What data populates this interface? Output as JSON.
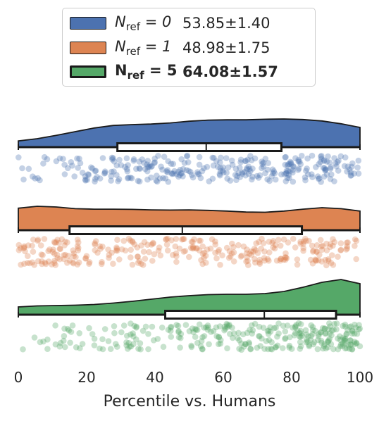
{
  "chart_data": {
    "type": "raincloud",
    "xlabel": "Percentile vs. Humans",
    "xlim": [
      0,
      100
    ],
    "xticks": [
      0,
      20,
      40,
      60,
      80,
      100
    ],
    "legend_position": "top-center",
    "grid": false,
    "series": [
      {
        "name_main": "N",
        "name_sub": "ref",
        "name_eq": " = 0",
        "stat": "53.85±1.40",
        "bold": false,
        "color": "#4c72b0",
        "box": {
          "min": 0,
          "q1": 29,
          "median": 55,
          "q3": 77,
          "max": 100
        },
        "density": [
          0.22,
          0.3,
          0.42,
          0.55,
          0.68,
          0.77,
          0.8,
          0.82,
          0.86,
          0.92,
          0.96,
          0.97,
          0.97,
          0.99,
          1.0,
          0.98,
          0.93,
          0.83,
          0.7
        ]
      },
      {
        "name_main": "N",
        "name_sub": "ref",
        "name_eq": " = 1",
        "stat": "48.98±1.75",
        "bold": false,
        "color": "#dd8452",
        "box": {
          "min": 0,
          "q1": 15,
          "median": 48,
          "q3": 83,
          "max": 100
        },
        "density": [
          0.92,
          1.0,
          0.97,
          0.9,
          0.88,
          0.88,
          0.87,
          0.85,
          0.84,
          0.85,
          0.83,
          0.8,
          0.76,
          0.75,
          0.8,
          0.88,
          0.94,
          0.9,
          0.8
        ]
      },
      {
        "name_main": "N",
        "name_sub": "ref",
        "name_eq": " = 5",
        "stat": "64.08±1.57",
        "bold": true,
        "color": "#55a868",
        "box": {
          "min": 0,
          "q1": 43,
          "median": 72,
          "q3": 93,
          "max": 100
        },
        "density": [
          0.22,
          0.25,
          0.26,
          0.27,
          0.29,
          0.33,
          0.38,
          0.44,
          0.5,
          0.54,
          0.57,
          0.58,
          0.58,
          0.6,
          0.66,
          0.78,
          0.92,
          1.0,
          0.88
        ]
      }
    ]
  }
}
